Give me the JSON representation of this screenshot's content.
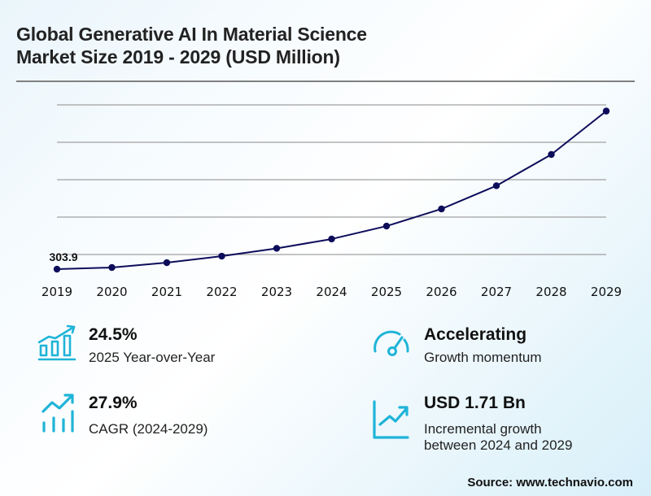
{
  "header": {
    "title_line1": "Global Generative AI In Material Science",
    "title_line2": "Market Size 2019 - 2029 (USD Million)"
  },
  "colors": {
    "line": "#0c0c5a",
    "grid": "#a0a0a0",
    "icon": "#1fb4d8",
    "text": "#111111"
  },
  "chart_data": {
    "type": "line",
    "title": "Global Generative AI In Material Science Market Size 2019 - 2029 (USD Million)",
    "xlabel": "",
    "ylabel": "USD Million",
    "categories": [
      "2019",
      "2020",
      "2021",
      "2022",
      "2023",
      "2024",
      "2025",
      "2026",
      "2027",
      "2028",
      "2029"
    ],
    "series": [
      {
        "name": "Market Size",
        "values": [
          303.9,
          326,
          391,
          478,
          582,
          707,
          880,
          1109,
          1419,
          1837,
          2417
        ]
      }
    ],
    "data_labels": [
      {
        "index": 0,
        "text": "303.9"
      }
    ],
    "ylim": [
      0,
      2500
    ],
    "y_gridlines": [
      500,
      1000,
      1500,
      2000,
      2500
    ],
    "y_tick_labels_visible": false,
    "grid": true,
    "legend": "none"
  },
  "kpis": [
    {
      "icon": "bar-chart-growth-icon",
      "value": "24.5%",
      "label_lines": [
        "2025 Year-over-Year"
      ]
    },
    {
      "icon": "speedometer-icon",
      "value": "Accelerating",
      "label_lines": [
        "Growth momentum"
      ]
    },
    {
      "icon": "trend-bars-icon",
      "value": "27.9%",
      "label_lines": [
        "CAGR (2024-2029)"
      ]
    },
    {
      "icon": "line-chart-up-icon",
      "value": "USD 1.71 Bn",
      "label_lines": [
        "Incremental growth",
        "between 2024 and 2029"
      ]
    }
  ],
  "footer": {
    "source": "Source: www.technavio.com"
  }
}
